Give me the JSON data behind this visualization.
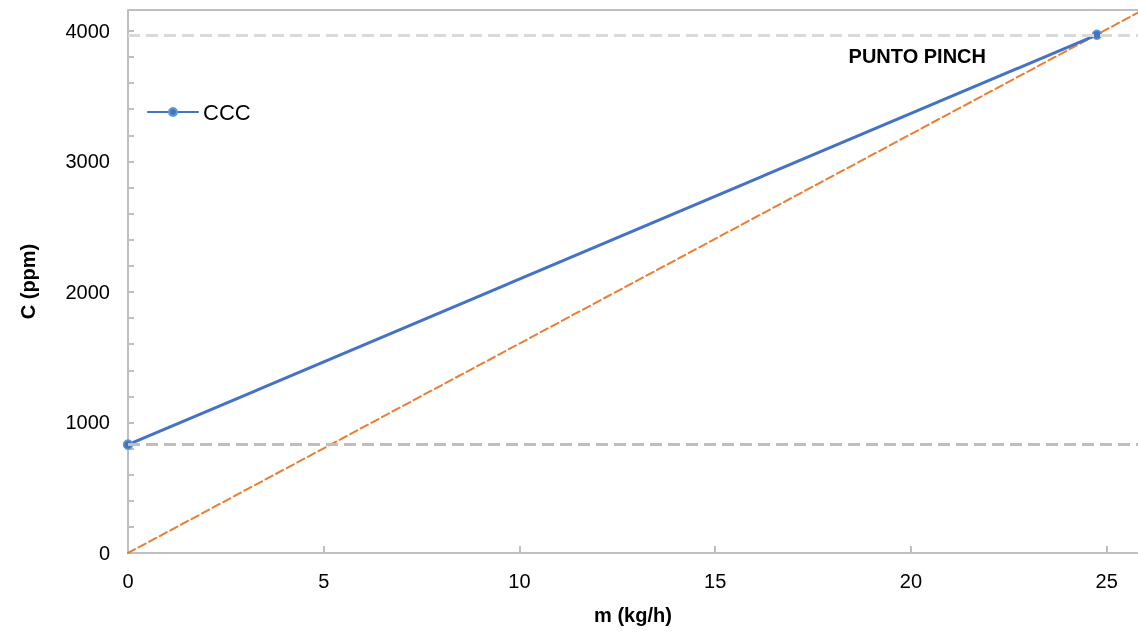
{
  "chart_data": {
    "type": "line",
    "xlabel": "m (kg/h)",
    "ylabel": "C (ppm)",
    "xlim": [
      0,
      25.8
    ],
    "xticks": [
      0,
      5,
      10,
      15,
      20,
      25
    ],
    "ylim": [
      0,
      4160
    ],
    "yticks": [
      0,
      {
        "value": 200,
        "label": null
      },
      {
        "value": 400,
        "label": null
      },
      {
        "value": 600,
        "label": null
      },
      {
        "value": 800,
        "label": null
      },
      1000,
      {
        "value": 1200,
        "label": null
      },
      {
        "value": 1400,
        "label": null
      },
      {
        "value": 1600,
        "label": null
      },
      {
        "value": 1800,
        "label": null
      },
      2000,
      {
        "value": 2200,
        "label": null
      },
      {
        "value": 2400,
        "label": null
      },
      {
        "value": 2600,
        "label": null
      },
      {
        "value": 2800,
        "label": null
      },
      3000,
      {
        "value": 3200,
        "label": null
      },
      {
        "value": 3400,
        "label": null
      },
      {
        "value": 3600,
        "label": null
      },
      {
        "value": 3800,
        "label": null
      },
      4000
    ],
    "grid": false,
    "legend": "top left",
    "series": [
      {
        "name": "CCC",
        "color": "#4472c4",
        "x": [
          0,
          24.75
        ],
        "values": [
          830,
          3970
        ],
        "marker": "circle",
        "line_style": "solid"
      },
      {
        "color": "#ed7d31",
        "x": [
          0,
          25.8
        ],
        "values": [
          0,
          4140
        ],
        "marker": "none",
        "line_style": "dashed"
      }
    ],
    "ref_lines": [
      {
        "axis": "y",
        "value": 3970,
        "color": "#d9d9d9",
        "line_style": "dashed"
      },
      {
        "axis": "y",
        "value": 830,
        "color": "#bfbfbf",
        "line_style": "dashed"
      }
    ],
    "annotations": [
      "PUNTO PINCH"
    ]
  }
}
